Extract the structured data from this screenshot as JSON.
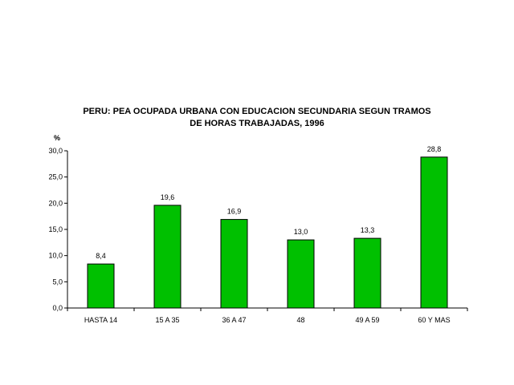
{
  "chart_data": {
    "type": "bar",
    "title_lines": [
      "PERU: PEA OCUPADA URBANA CON EDUCACION SECUNDARIA SEGUN TRAMOS",
      "DE HORAS TRABAJADAS, 1996"
    ],
    "ylabel": "%",
    "xlabel": "",
    "categories": [
      "HASTA 14",
      "15 A 35",
      "36 A 47",
      "48",
      "49 A 59",
      "60 Y MAS"
    ],
    "values": [
      8.4,
      19.6,
      16.9,
      13.0,
      13.3,
      28.8
    ],
    "value_labels": [
      "8,4",
      "19,6",
      "16,9",
      "13,0",
      "13,3",
      "28,8"
    ],
    "ylim": [
      0,
      30
    ],
    "yticks": [
      0,
      5,
      10,
      15,
      20,
      25,
      30
    ],
    "ytick_labels": [
      "0,0",
      "5,0",
      "10,0",
      "15,0",
      "20,0",
      "25,0",
      "30,0"
    ],
    "bar_color": "#00c000",
    "grid": false,
    "legend": "none"
  }
}
